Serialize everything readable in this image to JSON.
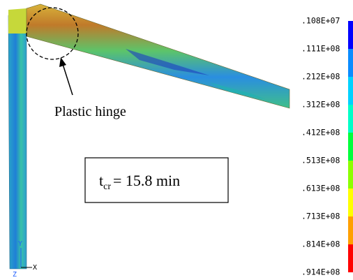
{
  "legend": {
    "labels": [
      ".108E+07",
      ".111E+08",
      ".212E+08",
      ".312E+08",
      ".412E+08",
      ".513E+08",
      ".613E+08",
      ".713E+08",
      ".814E+08",
      ".914E+08"
    ]
  },
  "annotation": "Plastic hinge",
  "box": {
    "symbol": "t",
    "subscript": "cr",
    "text": "= 15.8 min"
  },
  "axes": {
    "y": "Y",
    "z": "Z",
    "x": "X"
  }
}
